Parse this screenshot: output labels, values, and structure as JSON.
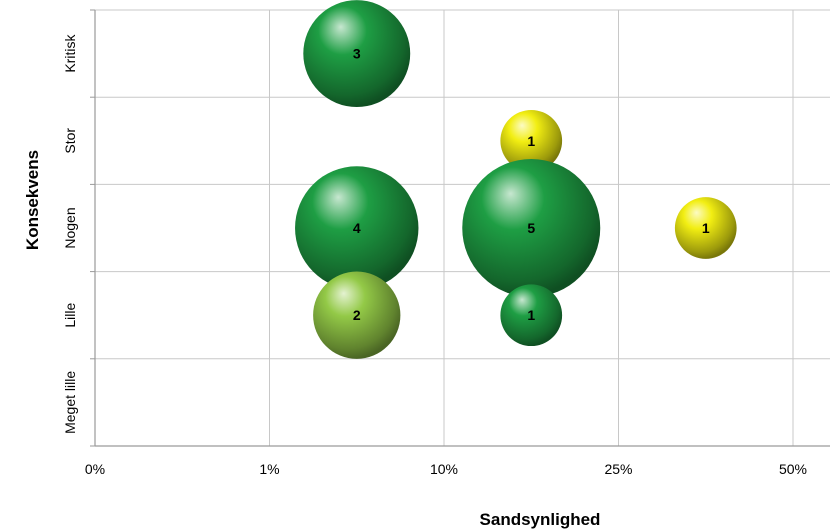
{
  "chart_data": {
    "type": "bubble",
    "xlabel": "Sandsynlighed",
    "ylabel": "Konsekvens",
    "x_categories": [
      "0%",
      "1%",
      "10%",
      "25%",
      "50%"
    ],
    "y_categories": [
      "Meget lille",
      "Lille",
      "Nogen",
      "Stor",
      "Kritisk"
    ],
    "grid": true,
    "points": [
      {
        "x": "1%-10%",
        "y": "Kritisk",
        "count": 3,
        "color": "#1e9e44"
      },
      {
        "x": "10%-25%",
        "y": "Stor",
        "count": 1,
        "color": "#f2ee12"
      },
      {
        "x": "1%-10%",
        "y": "Nogen",
        "count": 4,
        "color": "#1e9e44"
      },
      {
        "x": "10%-25%",
        "y": "Nogen",
        "count": 5,
        "color": "#1e9e44"
      },
      {
        "x": "25%-50%",
        "y": "Nogen",
        "count": 1,
        "color": "#f2ee12"
      },
      {
        "x": "1%-10%",
        "y": "Lille",
        "count": 2,
        "color": "#93c947"
      },
      {
        "x": "10%-25%",
        "y": "Lille",
        "count": 1,
        "color": "#1e9e44"
      }
    ]
  }
}
